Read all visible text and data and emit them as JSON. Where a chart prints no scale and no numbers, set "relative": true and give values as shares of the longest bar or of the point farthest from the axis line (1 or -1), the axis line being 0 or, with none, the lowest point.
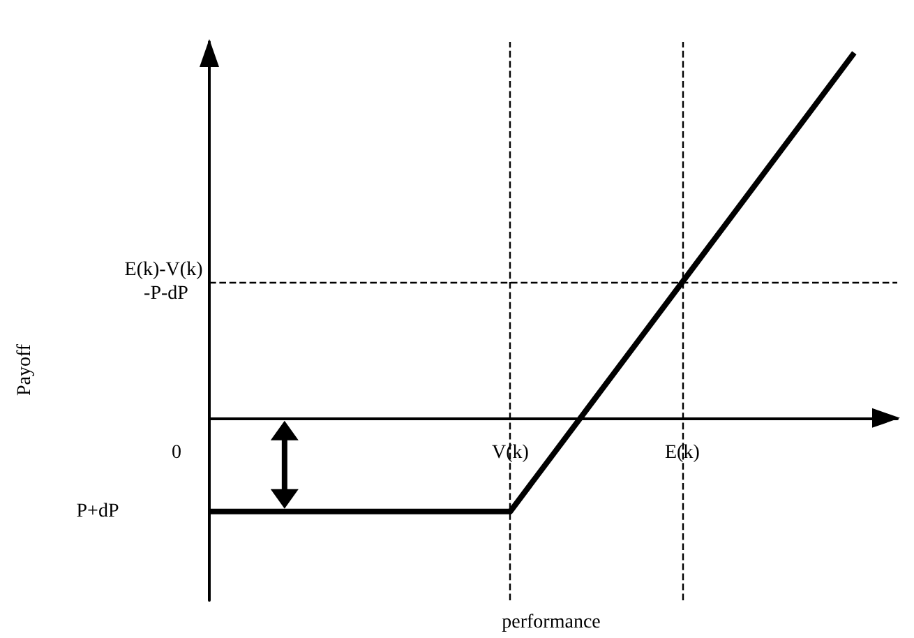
{
  "chart_data": {
    "type": "line",
    "relative": true,
    "categories": [
      "0",
      null,
      null,
      null,
      null,
      null,
      null,
      "V(k)",
      null,
      null,
      null,
      "E(k)",
      null,
      null,
      null,
      null,
      null
    ],
    "series": [
      {
        "color": "#000000",
        "values": [
          -0.256,
          -0.256,
          -0.256,
          -0.256,
          -0.256,
          -0.256,
          -0.256,
          -0.256,
          -0.099,
          0.058,
          0.215,
          0.372,
          0.529,
          0.686,
          0.843,
          1,
          null
        ]
      }
    ],
    "ref_lines": [
      {
        "axis": "x",
        "value": "V(k)",
        "line_style": "dashed",
        "color": "#000000"
      },
      {
        "axis": "x",
        "value": "E(k)",
        "line_style": "dashed",
        "color": "#000000"
      },
      {
        "axis": "y",
        "value": 0.372,
        "label": "E(k)-V(k) -P-dP",
        "line_style": "dashed",
        "color": "#000000"
      }
    ],
    "annotations": [
      "P+dP",
      "Payoff",
      "performance"
    ],
    "marker": "none",
    "line_style": "solid",
    "grid": false
  }
}
